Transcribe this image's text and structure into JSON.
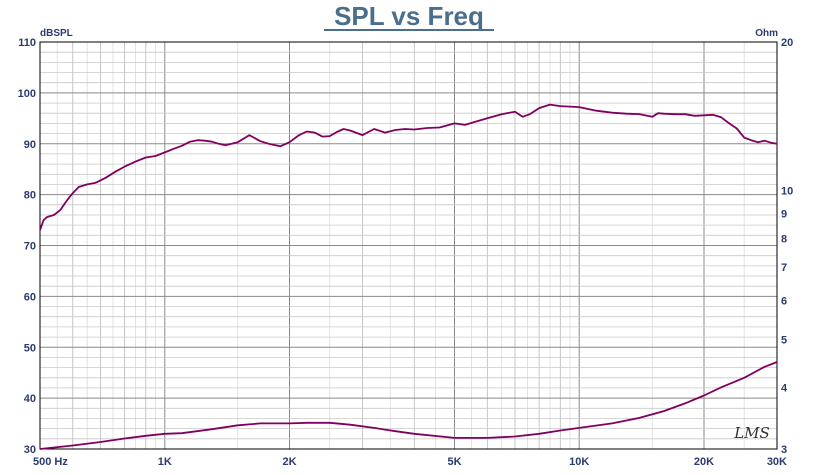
{
  "chart_data": {
    "type": "line",
    "title": "SPL vs Freq",
    "ylabel_left": "dBSPL",
    "ylabel_right": "Ohm",
    "x_scale": "log",
    "xlim": [
      500,
      30000
    ],
    "ylim_left": [
      30,
      110
    ],
    "ylim_right": [
      3,
      20
    ],
    "y_right_scale": "log",
    "grid": true,
    "x_ticks": [
      {
        "value": 500,
        "label": "500  Hz"
      },
      {
        "value": 1000,
        "label": "1K"
      },
      {
        "value": 2000,
        "label": "2K"
      },
      {
        "value": 5000,
        "label": "5K"
      },
      {
        "value": 10000,
        "label": "10K"
      },
      {
        "value": 20000,
        "label": "20K"
      },
      {
        "value": 30000,
        "label": "30K"
      }
    ],
    "y_left_ticks": [
      30,
      40,
      50,
      60,
      70,
      80,
      90,
      100,
      110
    ],
    "y_right_ticks": [
      3,
      4,
      5,
      6,
      7,
      8,
      9,
      10,
      20
    ],
    "watermark": "LMS",
    "line_color": "#800060",
    "series": [
      {
        "axis": "left",
        "x": [
          500,
          510,
          520,
          540,
          560,
          580,
          600,
          620,
          650,
          680,
          720,
          760,
          800,
          850,
          900,
          950,
          1000,
          1050,
          1100,
          1150,
          1200,
          1250,
          1300,
          1350,
          1400,
          1500,
          1600,
          1700,
          1800,
          1900,
          2000,
          2100,
          2200,
          2300,
          2400,
          2500,
          2600,
          2700,
          2800,
          3000,
          3200,
          3400,
          3600,
          3800,
          4000,
          4300,
          4600,
          5000,
          5300,
          5600,
          6000,
          6500,
          7000,
          7300,
          7600,
          8000,
          8500,
          9000,
          9500,
          10000,
          11000,
          12000,
          13000,
          14000,
          15000,
          15500,
          16000,
          17000,
          18000,
          19000,
          20000,
          21000,
          22000,
          23000,
          24000,
          25000,
          26000,
          27000,
          28000,
          29000,
          30000
        ],
        "values": [
          73.0,
          75.0,
          75.6,
          76.0,
          77.0,
          78.8,
          80.3,
          81.5,
          82.0,
          82.3,
          83.3,
          84.5,
          85.5,
          86.5,
          87.3,
          87.6,
          88.3,
          89.0,
          89.6,
          90.4,
          90.7,
          90.6,
          90.4,
          90.0,
          89.7,
          90.3,
          91.7,
          90.5,
          89.9,
          89.5,
          90.3,
          91.6,
          92.4,
          92.2,
          91.4,
          91.5,
          92.3,
          92.9,
          92.6,
          91.7,
          92.9,
          92.2,
          92.7,
          92.9,
          92.8,
          93.1,
          93.2,
          94.0,
          93.7,
          94.3,
          95.0,
          95.8,
          96.3,
          95.3,
          95.8,
          97.0,
          97.7,
          97.4,
          97.3,
          97.2,
          96.5,
          96.1,
          95.9,
          95.8,
          95.3,
          96.0,
          95.9,
          95.8,
          95.8,
          95.5,
          95.6,
          95.7,
          95.2,
          94.0,
          93.0,
          91.2,
          90.7,
          90.3,
          90.6,
          90.2,
          90.0
        ]
      },
      {
        "axis": "right",
        "x": [
          500,
          600,
          700,
          800,
          900,
          1000,
          1100,
          1300,
          1500,
          1700,
          2000,
          2200,
          2500,
          2800,
          3200,
          3600,
          4000,
          5000,
          6000,
          7000,
          8000,
          9000,
          10000,
          12000,
          14000,
          16000,
          18000,
          20000,
          22000,
          25000,
          28000,
          30000
        ],
        "values": [
          3.0,
          3.05,
          3.1,
          3.15,
          3.19,
          3.22,
          3.23,
          3.29,
          3.35,
          3.38,
          3.38,
          3.39,
          3.39,
          3.36,
          3.31,
          3.26,
          3.22,
          3.16,
          3.16,
          3.18,
          3.22,
          3.27,
          3.31,
          3.38,
          3.47,
          3.58,
          3.71,
          3.85,
          4.0,
          4.18,
          4.4,
          4.5
        ]
      }
    ]
  }
}
